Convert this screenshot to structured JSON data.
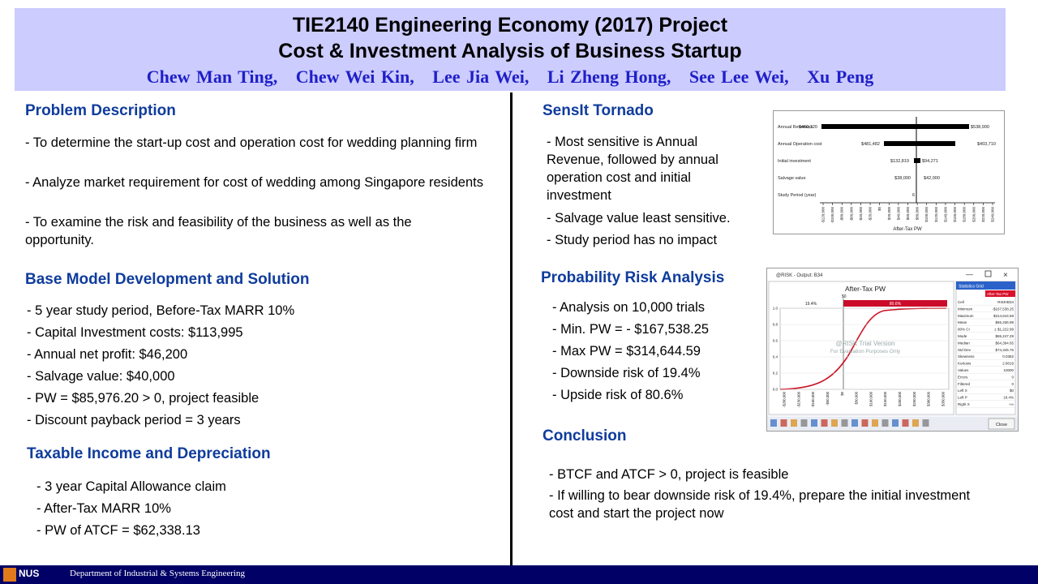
{
  "header": {
    "title": "TIE2140 Engineering Economy (2017) Project",
    "subtitle": "Cost & Investment Analysis of Business Startup",
    "authors": "Chew Man Ting,   Chew Wei Kin,   Lee Jia Wei,   Li Zheng Hong,   See Lee Wei,   Xu Peng"
  },
  "sections": {
    "problem": {
      "heading": "Problem Description",
      "bullets": [
        "- To determine the start-up cost and operation cost for wedding planning firm",
        "- Analyze market requirement for cost of wedding among Singapore residents",
        "- To examine the risk and feasibility of the business as well as the opportunity."
      ]
    },
    "base_model": {
      "heading": "Base Model Development and Solution",
      "bullets": [
        "- 5 year study period, Before-Tax MARR 10%",
        "- Capital Investment costs: $113,995",
        "- Annual net profit: $46,200",
        "- Salvage value: $40,000",
        "- PW = $85,976.20 > 0, project feasible",
        "- Discount payback period = 3 years"
      ]
    },
    "taxable": {
      "heading": "Taxable Income and Depreciation",
      "bullets": [
        "- 3 year Capital Allowance claim",
        "- After-Tax MARR 10%",
        "- PW of ATCF = $62,338.13"
      ]
    },
    "tornado": {
      "heading": "SensIt Tornado",
      "bullets": [
        "- Most sensitive is Annual Revenue, followed by annual operation cost and initial investment",
        "- Salvage value least sensitive.",
        "- Study period has no impact"
      ]
    },
    "risk": {
      "heading": "Probability  Risk Analysis",
      "bullets": [
        "- Analysis on 10,000 trials",
        "- Min. PW = - $167,538.25",
        "- Max PW = $314,644.59",
        "- Downside risk of 19.4%",
        "- Upside risk of 80.6%"
      ]
    },
    "conclusion": {
      "heading": "Conclusion",
      "bullets": [
        "- BTCF and ATCF > 0, project is feasible",
        "- If willing to bear downside risk of 19.4%, prepare the initial investment cost and start the project now"
      ]
    }
  },
  "tornado_image": {
    "rows": [
      {
        "name": "Annual Revenues",
        "low": "$460,120",
        "high": "$538,900"
      },
      {
        "name": "Annual Operation cost",
        "low": "$481,482",
        "high": "$403,710"
      },
      {
        "name": "Initial investment",
        "low": "$132,819",
        "high": "$94,271"
      },
      {
        "name": "Salvage value",
        "low": "$38,000",
        "high": "$42,000"
      },
      {
        "name": "Study Period (year)",
        "low": "6"
      }
    ],
    "ticks": [
      "-$120,000",
      "-$100,000",
      "-$80,000",
      "-$60,000",
      "-$40,000",
      "-$20,000",
      "$0",
      "$20,000",
      "$40,000",
      "$60,000",
      "$80,000",
      "$100,000",
      "$120,000",
      "$140,000",
      "$160,000",
      "$180,000",
      "$200,000",
      "$220,000",
      "$240,000"
    ],
    "axis_label": "After-Tax PW"
  },
  "risk_image": {
    "window_title": "@RISK - Output: B34",
    "chart_title": "After-Tax PW",
    "left_pct": "19.4%",
    "right_pct": "80.6%",
    "marker": "$0",
    "watermark": [
      "@RISK Trial Version",
      "For Evaluation Purposes Only"
    ],
    "yticks": [
      "0.0",
      "0.2",
      "0.4",
      "0.6",
      "0.8",
      "1.0"
    ],
    "xticks": [
      "-$200,000",
      "-$150,000",
      "-$100,000",
      "-$50,000",
      "$0",
      "$50,000",
      "$100,000",
      "$150,000",
      "$200,000",
      "$250,000",
      "$300,000",
      "$350,000"
    ],
    "grid_title": "Statistics Grid",
    "grid_column": "After-Tax PW",
    "stats": [
      [
        "Cell",
        "RISK!B34"
      ],
      [
        "Minimum",
        "-$167,538.25"
      ],
      [
        "Maximum",
        "$314,644.59"
      ],
      [
        "Mean",
        "$65,336.99"
      ],
      [
        "90% CI",
        "± $1,222.99"
      ],
      [
        "Mode",
        "$65,247.29"
      ],
      [
        "Median",
        "$64,394.65"
      ],
      [
        "Std Dev",
        "$74,345.76"
      ],
      [
        "Skewness",
        "0.0382"
      ],
      [
        "Kurtosis",
        "2.8019"
      ],
      [
        "Values",
        "10000"
      ],
      [
        "Errors",
        "0"
      ],
      [
        "Filtered",
        "0"
      ],
      [
        "Left X",
        "$0"
      ],
      [
        "Left P",
        "19.4%"
      ],
      [
        "Right X",
        "+∞"
      ]
    ],
    "close_button": "Close"
  },
  "footer": {
    "logo": "NUS",
    "department": "Department of Industrial & Systems Engineering"
  }
}
